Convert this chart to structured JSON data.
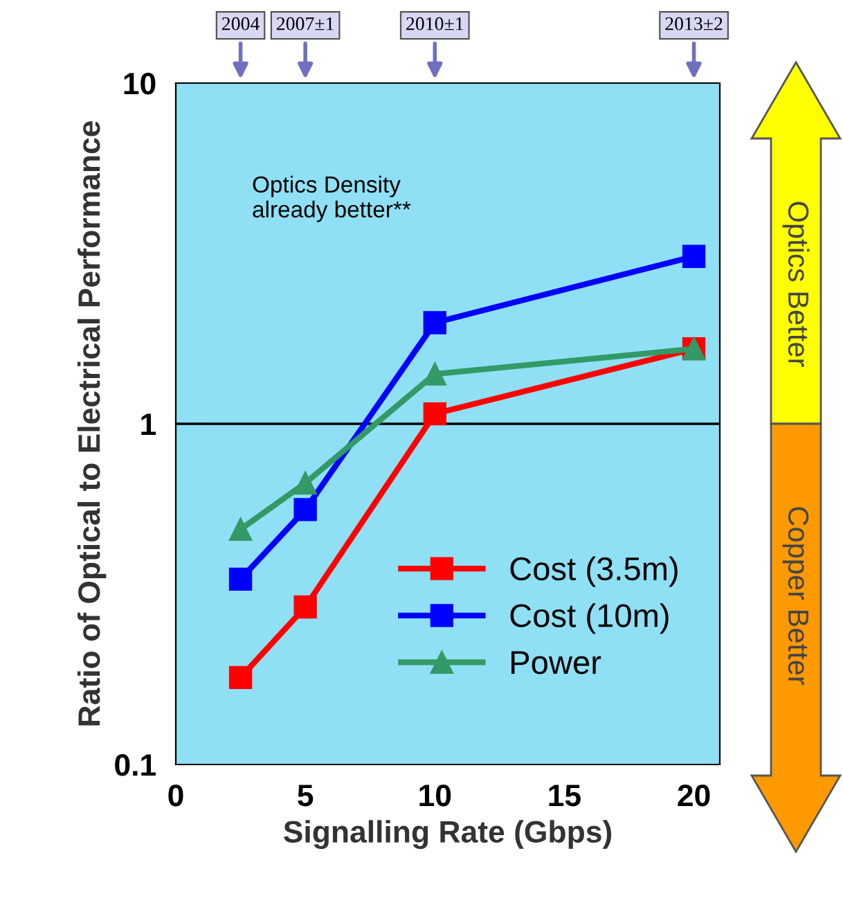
{
  "chart_data": {
    "type": "line",
    "xlabel": "Signalling Rate (Gbps)",
    "ylabel": "Ratio of Optical to Electrical Performance",
    "series": [
      {
        "name": "Cost (3.5m)",
        "color": "#ff0000",
        "marker": "square",
        "x": [
          2.5,
          5,
          10,
          20
        ],
        "values": [
          0.18,
          0.29,
          1.07,
          1.66
        ]
      },
      {
        "name": "Cost (10m)",
        "color": "#0000ff",
        "marker": "square",
        "x": [
          2.5,
          5,
          10,
          20
        ],
        "values": [
          0.35,
          0.56,
          1.98,
          3.1
        ]
      },
      {
        "name": "Power",
        "color": "#339966",
        "marker": "triangle",
        "x": [
          2.5,
          5,
          10,
          20
        ],
        "values": [
          0.49,
          0.67,
          1.4,
          1.66
        ]
      }
    ],
    "log": "y",
    "xlim": [
      0,
      21
    ],
    "xticks": [
      0,
      5,
      10,
      15,
      20
    ],
    "ylim": [
      0.1,
      10
    ],
    "yticks": [
      0.1,
      1,
      10
    ],
    "ref_lines": [
      {
        "axis": "y",
        "value": 1,
        "color": "#000000"
      }
    ],
    "annotations": [
      "Optics Density\nalready better**",
      "Optics Better",
      "Copper Better",
      "2004",
      "2007±1",
      "2010±1",
      "2013±2"
    ],
    "legend": "bottom right",
    "grid": false
  }
}
